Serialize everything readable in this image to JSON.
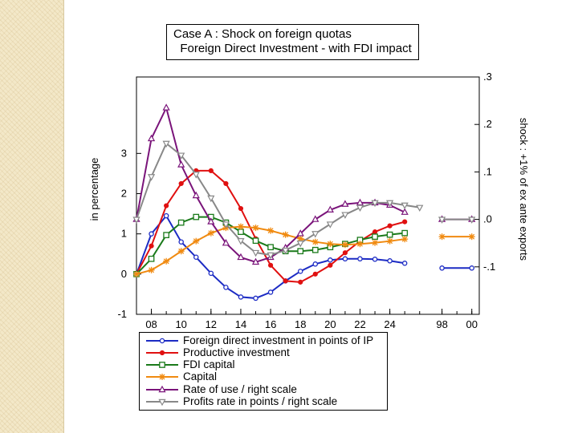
{
  "title_lines": [
    "Case A : Shock on foreign quotas",
    "  Foreign Direct Investment - with FDI impact"
  ],
  "chart_data": {
    "type": "line",
    "title": "Case A : Shock on foreign quotas / Foreign Direct Investment - with FDI impact",
    "ylabel": "in percentage",
    "y2label": "shock : +1% of ex ante exports",
    "ylim": [
      -1,
      4.9
    ],
    "y2lim": [
      -0.2,
      0.3
    ],
    "y_ticks": [
      -1,
      0,
      1,
      2,
      3
    ],
    "y_tick_labels": [
      "-1",
      "0",
      "1",
      "2",
      "3"
    ],
    "y2_ticks": [
      -0.1,
      0.0,
      0.1,
      0.2,
      0.3
    ],
    "y2_tick_labels": [
      "-.1",
      ".0",
      ".1",
      ".2",
      ".3"
    ],
    "x": [
      1,
      2,
      3,
      4,
      5,
      6,
      7,
      8,
      9,
      10,
      11,
      12,
      13,
      14,
      15,
      16,
      17,
      18,
      19,
      20,
      21,
      22
    ],
    "x_positions": [
      2007,
      2008,
      2009,
      2010,
      2011,
      2012,
      2013,
      2014,
      2015,
      2016,
      2017,
      2018,
      2019,
      2020,
      2021,
      2022,
      2023,
      2024,
      2025,
      2026,
      2027,
      2028
    ],
    "x_ticks": [
      2008,
      2010,
      2012,
      2014,
      2016,
      2018,
      2020,
      2022,
      2024,
      2027.5,
      2029.5
    ],
    "x_tick_labels": [
      "08",
      "10",
      "12",
      "14",
      "16",
      "18",
      "20",
      "22",
      "24",
      "98",
      "00"
    ],
    "steady_state_x": [
      2027.5,
      2029.5
    ],
    "series": [
      {
        "name": "Foreign direct investment in points of IP",
        "axis": "left",
        "color": "#1c2bc4",
        "marker": "circle",
        "values": [
          0.0,
          1.0,
          1.45,
          0.8,
          0.42,
          0.02,
          -0.33,
          -0.57,
          -0.6,
          -0.45,
          -0.17,
          0.07,
          0.25,
          0.35,
          0.38,
          0.38,
          0.37,
          0.33,
          0.27,
          null,
          null,
          null
        ],
        "steady_state": 0.15
      },
      {
        "name": "Productive investment",
        "axis": "left",
        "color": "#e01010",
        "marker": "dot",
        "values": [
          0.0,
          0.7,
          1.7,
          2.25,
          2.57,
          2.57,
          2.25,
          1.63,
          0.88,
          0.22,
          -0.17,
          -0.2,
          0.0,
          0.22,
          0.53,
          0.82,
          1.05,
          1.2,
          1.3,
          null,
          null,
          null
        ],
        "steady_state": null
      },
      {
        "name": "FDI capital",
        "axis": "left",
        "color": "#1a7a1a",
        "marker": "square",
        "values": [
          0.0,
          0.38,
          0.97,
          1.28,
          1.42,
          1.42,
          1.28,
          1.05,
          0.83,
          0.67,
          0.57,
          0.57,
          0.6,
          0.67,
          0.75,
          0.85,
          0.93,
          0.98,
          1.02,
          null,
          null,
          null
        ],
        "steady_state": null
      },
      {
        "name": "Capital",
        "axis": "left",
        "color": "#f08a10",
        "marker": "star",
        "values": [
          0.0,
          0.1,
          0.32,
          0.57,
          0.82,
          1.02,
          1.15,
          1.18,
          1.15,
          1.08,
          0.98,
          0.88,
          0.8,
          0.75,
          0.73,
          0.75,
          0.78,
          0.82,
          0.87,
          null,
          null,
          null
        ],
        "steady_state": 0.93
      },
      {
        "name": "Rate of use / right scale",
        "axis": "right",
        "color": "#7a147a",
        "marker": "triangle-up",
        "values": [
          0.0,
          0.17,
          0.235,
          0.115,
          0.05,
          -0.005,
          -0.05,
          -0.08,
          -0.09,
          -0.08,
          -0.06,
          -0.03,
          0.0,
          0.02,
          0.032,
          0.035,
          0.035,
          0.03,
          0.015,
          null,
          null,
          null
        ],
        "steady_state": 0.0
      },
      {
        "name": "Profits rate in points / right scale",
        "axis": "right",
        "color": "#888888",
        "marker": "triangle-down",
        "values": [
          0.0,
          0.09,
          0.16,
          0.135,
          0.095,
          0.045,
          -0.01,
          -0.045,
          -0.07,
          -0.075,
          -0.065,
          -0.05,
          -0.03,
          -0.01,
          0.01,
          0.025,
          0.035,
          0.035,
          0.03,
          0.025,
          null,
          null
        ],
        "steady_state": 0.0
      }
    ]
  },
  "legend": [
    {
      "label": "Foreign direct investment in points of IP",
      "color": "#1c2bc4",
      "marker": "circle"
    },
    {
      "label": "Productive investment",
      "color": "#e01010",
      "marker": "dot"
    },
    {
      "label": "FDI capital",
      "color": "#1a7a1a",
      "marker": "square"
    },
    {
      "label": "Capital",
      "color": "#f08a10",
      "marker": "star"
    },
    {
      "label": "Rate of use / right scale",
      "color": "#7a147a",
      "marker": "triangle-up"
    },
    {
      "label": "Profits rate in points / right scale",
      "color": "#888888",
      "marker": "triangle-down"
    }
  ]
}
